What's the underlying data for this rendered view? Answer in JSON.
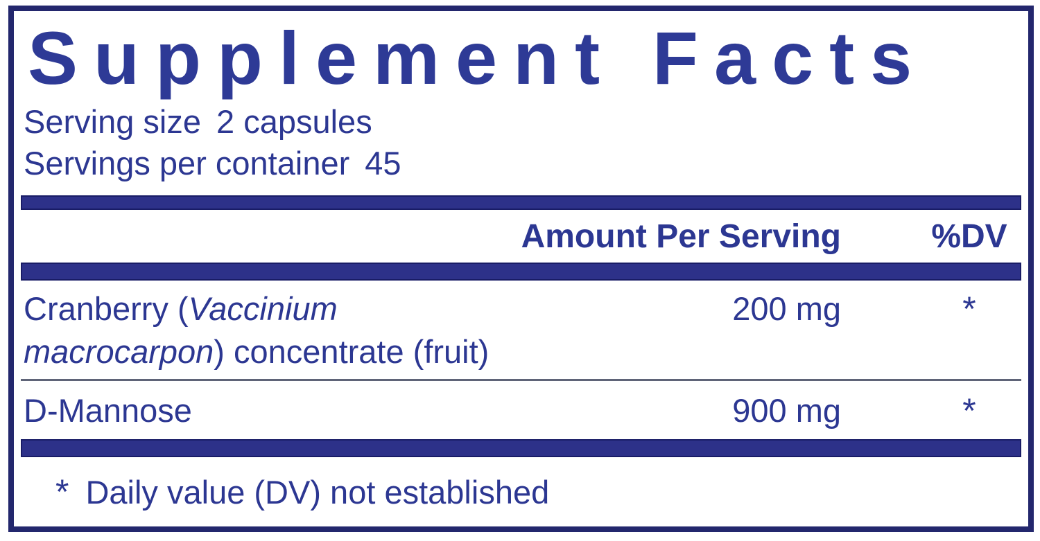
{
  "label": {
    "title": "Supplement Facts",
    "serving_size": {
      "label": "Serving size",
      "value": "2 capsules"
    },
    "servings_per_container": {
      "label": "Servings per container",
      "value": "45"
    },
    "columns": {
      "amount": "Amount Per Serving",
      "dv": "%DV"
    },
    "rows": [
      {
        "lines": [
          {
            "pre": "Cranberry (",
            "italic": "Vaccinium",
            "post": ""
          },
          {
            "pre": "",
            "italic": "macrocarpon",
            "post": ") concentrate (fruit)"
          }
        ],
        "amount": "200 mg",
        "dv": "*"
      },
      {
        "lines": [
          {
            "pre": "D-Mannose",
            "italic": "",
            "post": ""
          }
        ],
        "amount": "900 mg",
        "dv": "*"
      }
    ],
    "footnote": {
      "symbol": "*",
      "text": "Daily value (DV) not established"
    }
  },
  "colors": {
    "text_navy": "#2C3792",
    "title_navy": "#2E3A96",
    "bar_fill": "#2D3189",
    "bar_edge": "#191C66",
    "border": "#23276D",
    "divider": "#5F6478",
    "background": "#FFFFFF"
  }
}
